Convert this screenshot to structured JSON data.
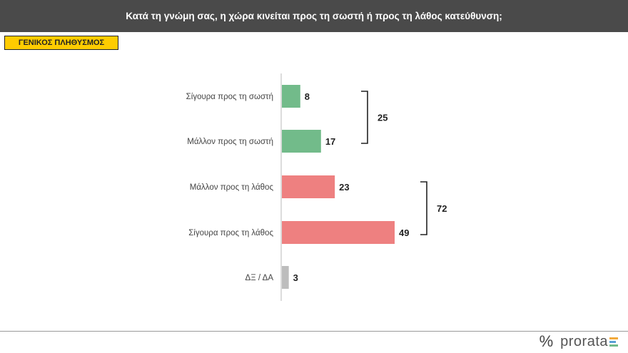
{
  "header": {
    "title": "Κατά τη γνώμη σας, η χώρα κινείται προς τη σωστή ή προς τη λάθος κατεύθυνση;"
  },
  "badge": {
    "label": "ΓΕΝΙΚΟΣ ΠΛΗΘΥΣΜΟΣ"
  },
  "brand": {
    "symbol": "%",
    "name": "prorata"
  },
  "colors": {
    "positive": "#72bb8a",
    "negative": "#ee8080",
    "neutral": "#bdbdbd",
    "header": "#4a4a4a",
    "badge": "#ffcc00"
  },
  "chart_data": {
    "type": "bar",
    "orientation": "horizontal",
    "categories": [
      "Σίγουρα προς τη σωστή",
      "Μάλλον προς τη σωστή",
      "Μάλλον προς τη λάθος",
      "Σίγουρα προς τη λάθος",
      "ΔΞ / ΔΑ"
    ],
    "values": [
      8,
      17,
      23,
      49,
      3
    ],
    "bar_colors": [
      "#72bb8a",
      "#72bb8a",
      "#ee8080",
      "#ee8080",
      "#bdbdbd"
    ],
    "groups": [
      {
        "from": 0,
        "to": 1,
        "total": 25
      },
      {
        "from": 2,
        "to": 3,
        "total": 72
      }
    ],
    "xlim": [
      0,
      50
    ],
    "grid": false
  }
}
